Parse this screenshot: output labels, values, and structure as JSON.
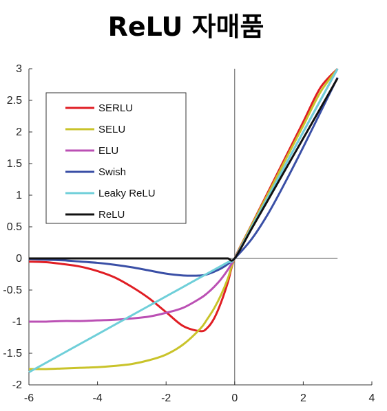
{
  "chart_data": {
    "type": "line",
    "title": "ReLU 자매품",
    "xlabel": "",
    "ylabel": "",
    "xlim": [
      -6,
      4
    ],
    "ylim": [
      -2,
      3
    ],
    "x_ticks": [
      "-6",
      "-4",
      "-2",
      "0",
      "2",
      "4"
    ],
    "y_ticks": [
      "3",
      "2.5",
      "2",
      "1.5",
      "1",
      "0.5",
      "0",
      "-0.5",
      "-1",
      "-1.5",
      "-2"
    ],
    "grid": false,
    "legend_position": "top-left",
    "x": [
      -6.0,
      -5.5,
      -5.0,
      -4.5,
      -4.0,
      -3.5,
      -3.0,
      -2.5,
      -2.0,
      -1.5,
      -1.0,
      -0.8,
      -0.6,
      -0.4,
      -0.2,
      0.0,
      0.5,
      1.0,
      1.5,
      2.0,
      2.5,
      3.0
    ],
    "series": [
      {
        "name": "SERLU",
        "color": "#e01e24",
        "values": [
          -0.05,
          -0.06,
          -0.09,
          -0.13,
          -0.2,
          -0.3,
          -0.45,
          -0.63,
          -0.85,
          -1.07,
          -1.15,
          -1.1,
          -0.95,
          -0.7,
          -0.38,
          0.0,
          0.54,
          1.08,
          1.62,
          2.16,
          2.7,
          3.24
        ]
      },
      {
        "name": "SELU",
        "color": "#c9c32a",
        "values": [
          -1.75,
          -1.75,
          -1.74,
          -1.73,
          -1.72,
          -1.7,
          -1.67,
          -1.61,
          -1.52,
          -1.36,
          -1.11,
          -0.96,
          -0.79,
          -0.58,
          -0.32,
          0.0,
          0.53,
          1.05,
          1.58,
          2.1,
          2.63,
          3.15
        ]
      },
      {
        "name": "ELU",
        "color": "#bb50b4",
        "values": [
          -1.0,
          -1.0,
          -0.99,
          -0.99,
          -0.98,
          -0.97,
          -0.95,
          -0.92,
          -0.86,
          -0.78,
          -0.63,
          -0.55,
          -0.45,
          -0.33,
          -0.18,
          0.0,
          0.5,
          1.0,
          1.5,
          2.0,
          2.5,
          3.0
        ]
      },
      {
        "name": "Swish",
        "color": "#3a4fa6",
        "values": [
          -0.01,
          -0.02,
          -0.03,
          -0.05,
          -0.07,
          -0.1,
          -0.14,
          -0.19,
          -0.24,
          -0.27,
          -0.27,
          -0.25,
          -0.21,
          -0.16,
          -0.09,
          0.0,
          0.31,
          0.73,
          1.23,
          1.76,
          2.31,
          2.86
        ]
      },
      {
        "name": "Leaky ReLU",
        "color": "#6fcfd9",
        "values": [
          -1.8,
          -1.65,
          -1.5,
          -1.35,
          -1.2,
          -1.05,
          -0.9,
          -0.75,
          -0.6,
          -0.45,
          -0.3,
          -0.24,
          -0.18,
          -0.12,
          -0.06,
          0.0,
          0.5,
          1.0,
          1.5,
          2.0,
          2.5,
          3.0
        ]
      },
      {
        "name": "ReLU",
        "color": "#111111",
        "values": [
          0,
          0,
          0,
          0,
          0,
          0,
          0,
          0,
          0,
          0,
          0,
          0,
          0,
          0,
          0,
          0,
          0.475,
          0.95,
          1.425,
          1.9,
          2.375,
          2.85
        ]
      }
    ]
  }
}
